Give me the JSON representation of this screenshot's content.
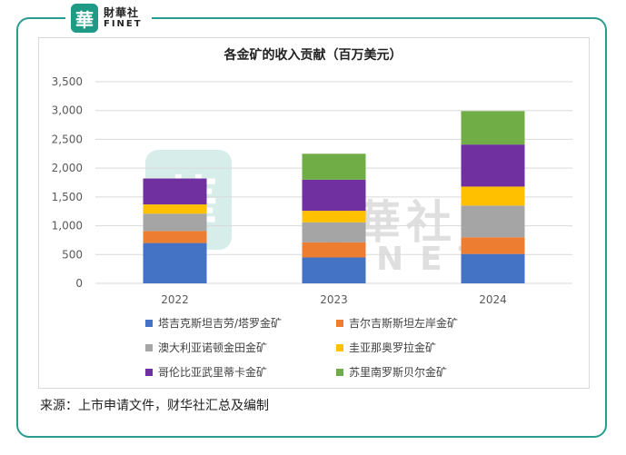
{
  "brand": {
    "logo_char": "華",
    "name_cn": "財華社",
    "name_en": "FINET"
  },
  "source_text": "来源：上市申请文件，财华社汇总及编制",
  "chart_data": {
    "type": "bar",
    "stacked": true,
    "title": "各金矿的收入贡献（百万美元）",
    "xlabel": "",
    "ylabel": "",
    "categories": [
      "2022",
      "2023",
      "2024"
    ],
    "ylim": [
      0,
      3500
    ],
    "yticks": [
      0,
      500,
      1000,
      1500,
      2000,
      2500,
      3000,
      3500
    ],
    "ytick_labels": [
      "0",
      "500",
      "1,000",
      "1,500",
      "2,000",
      "2,500",
      "3,000",
      "3,500"
    ],
    "grid": true,
    "legend_position": "bottom",
    "series": [
      {
        "name": "塔吉克斯坦吉劳/塔罗金矿",
        "color": "#4472c4",
        "values": [
          700,
          450,
          510
        ]
      },
      {
        "name": "吉尔吉斯斯坦左岸金矿",
        "color": "#ed7d31",
        "values": [
          210,
          260,
          290
        ]
      },
      {
        "name": "澳大利亚诺顿金田金矿",
        "color": "#a5a5a5",
        "values": [
          300,
          350,
          550
        ]
      },
      {
        "name": "圭亚那奥罗拉金矿",
        "color": "#ffc000",
        "values": [
          160,
          200,
          330
        ]
      },
      {
        "name": "哥伦比亚武里蒂卡金矿",
        "color": "#7030a0",
        "values": [
          450,
          540,
          730
        ]
      },
      {
        "name": "苏里南罗斯贝尔金矿",
        "color": "#70ad47",
        "values": [
          0,
          450,
          580
        ]
      }
    ]
  }
}
